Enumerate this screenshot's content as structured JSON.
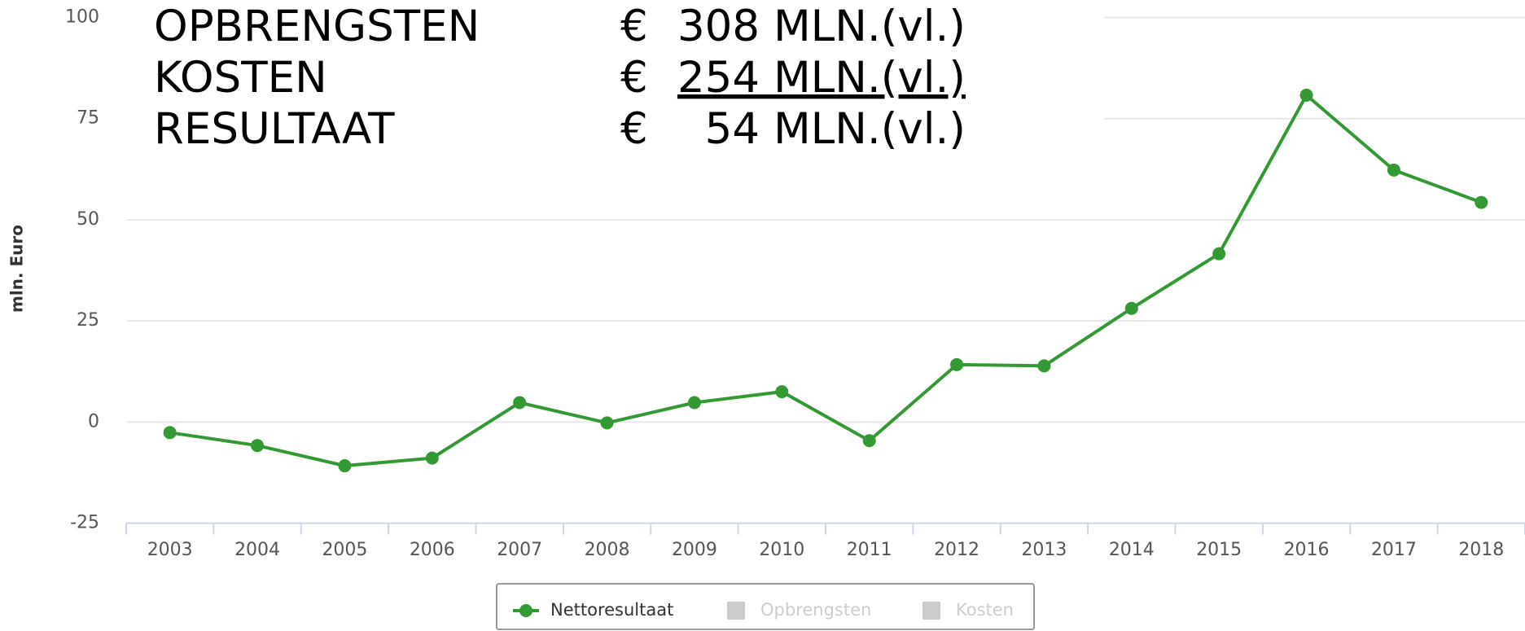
{
  "chart_data": {
    "type": "line",
    "y_label": "mln. Euro",
    "categories": [
      "2003",
      "2004",
      "2005",
      "2006",
      "2007",
      "2008",
      "2009",
      "2010",
      "2011",
      "2012",
      "2013",
      "2014",
      "2015",
      "2016",
      "2017",
      "2018"
    ],
    "series": [
      {
        "name": "Nettoresultaat",
        "color": "#339933",
        "values": [
          -2.6,
          -5.8,
          -10.8,
          -8.9,
          4.8,
          -0.2,
          4.8,
          7.5,
          -4.6,
          14.2,
          13.9,
          28.1,
          41.6,
          80.8,
          62.3,
          54.3
        ]
      },
      {
        "name": "Opbrengsten",
        "color": "#cccccc"
      },
      {
        "name": "Kosten",
        "color": "#cccccc"
      }
    ],
    "ylim": [
      -25,
      100
    ],
    "yticks": [
      -25,
      0,
      25,
      50,
      75,
      100
    ],
    "grid": true,
    "legend": "bottom",
    "annotations": [
      {
        "label": "OPBRENGSTEN",
        "currency": "€",
        "amount": "308 MLN.(vl.)"
      },
      {
        "label": "KOSTEN",
        "currency": "€",
        "amount": "254 MLN.(vl.)"
      },
      {
        "label": "RESULTAAT",
        "currency": "€",
        "amount": "54 MLN.(vl.)"
      }
    ]
  }
}
